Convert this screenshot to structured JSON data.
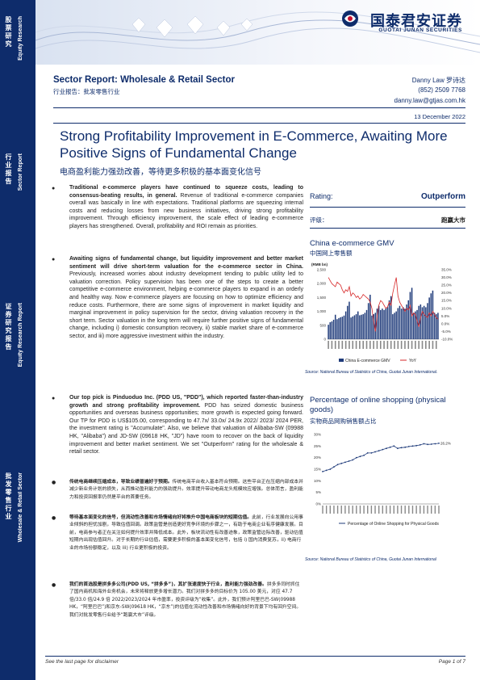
{
  "sidebar": {
    "blocks": [
      {
        "cn": "股票研究",
        "en": "Equity Research"
      },
      {
        "cn": "行业报告",
        "en": "Sector Report"
      },
      {
        "cn": "证券研究报告",
        "en": "Equity Research Report"
      },
      {
        "cn": "批发零售行业",
        "en": "Wholesale & Retail Sector"
      }
    ]
  },
  "brand": {
    "cn": "国泰君安证券",
    "en": "GUOTAI JUNAN SECURITIES"
  },
  "report": {
    "title": "Sector Report:  Wholesale & Retail Sector",
    "subtitle": "行业报告：批发零售行业",
    "analyst_name": "Danny Law 罗诗达",
    "analyst_phone": "(852) 2509 7768",
    "analyst_email": "danny.law@gtjas.com.hk",
    "date": "13 December 2022",
    "headline": "Strong Profitability Improvement in E-Commerce, Awaiting More Positive Signs of Fundamental Change",
    "headline_cn": "电商盈利能力强劲改善，等待更多积极的基本面变化信号"
  },
  "bullets": [
    {
      "bold": "Traditional e-commerce players have continued to squeeze costs, leading to consensus-beating results, in general.",
      "text": " Revenue of traditional e-commerce companies overall was basically in line with expectations. Traditional platforms are squeezing internal costs and reducing losses from new business initiatives, driving strong profitability improvement. Through efficiency improvement, the scale effect of leading e-commerce players has strengthened. Overall, profitability and ROI remain as priorities."
    },
    {
      "bold": "Awaiting signs of fundamental change, but liquidity improvement and better market sentiment will drive short-term valuation for the e-commerce sector in China.",
      "text": " Previously, increased worries about industry development tending to public utility led to valuation correction. Policy supervision has been one of the steps to create a better competitive e-commerce environment, helping e-commerce players to expand in an orderly and healthy way. Now e-commerce players are focusing on how to optimize efficiency and reduce costs. Furthermore, there are some signs of improvement in market liquidity and marginal improvement in policy supervision for the sector, driving valuation recovery in the short term. Sector valuation in the long term will require further positive signs of fundamental change, including i) domestic consumption recovery, ii) stable market share of e-commerce sector, and iii) more aggressive investment within the industry."
    },
    {
      "bold": "Our top pick is Pinduoduo Inc. (PDD US, \"PDD\"), which reported faster-than-industry growth and strong profitability improvement.",
      "text": " PDD has seized domestic business opportunities and overseas business opportunities; more growth is expected going forward. Our TP for PDD is US$105.00, corresponding to 47.7x/ 33.0x/ 24.9x 2022/ 2023/ 2024 PER, the investment rating is \"Accumulate\". Also, we believe that valuation of Alibaba-SW (09988 HK, \"Alibaba\") and JD-SW (09618 HK, \"JD\") have room to recover on the back of liquidity improvement and better market sentiment. We set \"Outperform\" rating for the wholesale & retail sector."
    }
  ],
  "bullets_cn": [
    {
      "bold": "传统电商继续压缩成本，导致业绩普遍好于预期。",
      "text": "传统电商平台收入基本符合预期。这些平台正在压缩内部成本并减少新业务计划的损失，从而推动盈利能力的强劲提升。效率提升带动电商龙头规模效应增强。总体而言，盈利能力和投资回报率仍然是平台的首要任务。"
    },
    {
      "bold": "等待基本面变化的信号，但流动性改善和市场情绪向好将推升中国电商板块的短期估值。",
      "text": "此前，行业发展向公用事业倾斜的担忧加剧，导致估值回调。政策监管是创造更好竞争环境的步骤之一，有助于电商企业有序健康发展。目前，电商参与者正在关注如何提升效率并降低成本。此外，板块流动性有改善迹象，政策监管边际改善，驱动估值短期内出现估值回升。对于长期的行业估值，需要更多积极的基本面变化信号，包括 i) 国内消费复苏，ii) 电商行业的市场份额稳定，以及 iii) 行业更积极的投资。"
    },
    {
      "bold": "我们的首选股是拼多多公司(PDD US, “拼多多”)，其扩张速度快于行业，盈利能力强劲改善。",
      "text": "拼多多同时抓住了国内商机和海外业务机会，未来将释放更多增长潜力。我们对拼多多的目标价为 105.00 美元，对应 47.7 倍/33.0 倍/24.9 倍 2022/2023/2024 年市盈率，投资评级为“收集”。此外，我们预计阿里巴巴-SW(09988 HK，“阿里巴巴”)和京东-SW(09618 HK，“京东”)的估值在流动性改善和市场情绪向好的背景下均有回升空间。我们对批发零售行业给予“跑赢大市”评级。"
    }
  ],
  "rating": {
    "label": "Rating:",
    "value": "Outperform",
    "label_cn": "评级：",
    "value_cn": "跑赢大市"
  },
  "chart1": {
    "title": "China e-commerce GMV",
    "subtitle": "中国网上零售额",
    "unit": "(RMB bn)",
    "source": "Source: National Bureau of Statistics of China, Guotai Junan International.",
    "legend": [
      "China E-commerce GMV",
      "YoY"
    ],
    "y_ticks": [
      "2,500",
      "2,000",
      "1,500",
      "1,000",
      "500",
      "0"
    ],
    "y2_ticks": [
      "35.0%",
      "30.0%",
      "25.0%",
      "20.0%",
      "15.0%",
      "10.0%",
      "5.0%",
      "0.0%",
      "-5.0%",
      "-10.0%"
    ]
  },
  "chart2": {
    "title": "Percentage of online shopping (physical goods)",
    "subtitle": "实物商品网购销售额占比",
    "source": "Source: National Bureau of Statistics of China, Guotai Junan International",
    "legend": [
      "Percentage of Online Shopping for Physical Goods"
    ],
    "y_ticks": [
      "30%",
      "25%",
      "20%",
      "15%",
      "10%",
      "5%",
      "0%"
    ],
    "last_label": "26.2%"
  },
  "chart_data": [
    {
      "type": "bar",
      "title": "China e-commerce GMV",
      "ylabel": "(RMB bn)",
      "ylim": [
        0,
        2500
      ],
      "y2lim": [
        -0.1,
        0.35
      ],
      "series": [
        {
          "name": "China E-commerce GMV",
          "values": [
            520,
            610,
            640,
            700,
            880,
            720,
            760,
            790,
            810,
            850,
            1000,
            1200,
            1350,
            780,
            820,
            860,
            900,
            1000,
            860,
            880,
            900,
            950,
            1050,
            1300,
            1600,
            850,
            900,
            950,
            1100,
            1200,
            1050,
            1100,
            1050,
            1100,
            1150,
            1400,
            1550,
            900,
            950,
            1000,
            1120,
            1200,
            1100,
            1150,
            1100,
            1250,
            1400,
            1700,
            1850,
            950,
            1000,
            1050,
            1200,
            1250,
            1150,
            1200,
            1150,
            1300,
            1500,
            1650,
            1750,
            950,
            900,
            950
          ]
        },
        {
          "name": "YoY",
          "values": [
            0.3,
            0.28,
            0.26,
            0.25,
            0.24,
            0.27,
            0.26,
            0.25,
            0.22,
            0.2,
            0.22,
            0.21,
            0.24,
            0.18,
            0.2,
            0.19,
            0.17,
            0.18,
            0.16,
            0.17,
            0.19,
            0.18,
            0.17,
            0.16,
            0.14,
            0.1,
            0.02,
            -0.05,
            0.05,
            0.12,
            0.15,
            0.14,
            0.12,
            0.1,
            0.11,
            0.14,
            0.12,
            0.2,
            0.25,
            0.3,
            0.18,
            0.14,
            0.12,
            0.1,
            0.08,
            0.1,
            0.09,
            0.12,
            0.05,
            0.07,
            0.06,
            0.02,
            -0.02,
            0.04,
            0.08,
            0.06,
            0.05,
            0.04,
            0.07,
            0.05,
            0.08,
            0.06,
            0.04,
            0.03
          ]
        }
      ]
    },
    {
      "type": "line",
      "title": "Percentage of online shopping (physical goods)",
      "ylim": [
        0,
        0.3
      ],
      "series": [
        {
          "name": "Percentage of Online Shopping for Physical Goods",
          "values": [
            0.14,
            0.145,
            0.15,
            0.16,
            0.17,
            0.175,
            0.18,
            0.185,
            0.19,
            0.2,
            0.205,
            0.21,
            0.22,
            0.22,
            0.225,
            0.23,
            0.235,
            0.24,
            0.245,
            0.25,
            0.24,
            0.243,
            0.245,
            0.248,
            0.25,
            0.252,
            0.255,
            0.26,
            0.257,
            0.258,
            0.26,
            0.262
          ]
        }
      ]
    }
  ],
  "footer": {
    "left": "See the last page for disclaimer",
    "right": "Page 1 of 7"
  }
}
